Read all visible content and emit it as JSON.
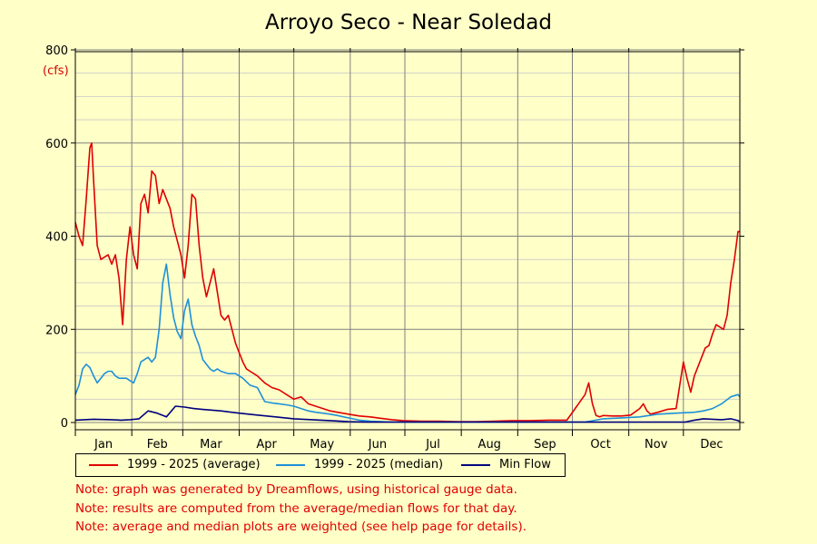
{
  "page": {
    "title": "Arroyo Seco - Near Soledad"
  },
  "colors": {
    "background": "#ffffc8",
    "average": "#e00000",
    "median": "#1e90d8",
    "min": "#000080",
    "unit": "#d40000"
  },
  "chart_data": {
    "type": "line",
    "title": "Arroyo Seco - Near Soledad",
    "ylabel_unit": "(cfs)",
    "ylim": [
      0,
      800
    ],
    "xlim": [
      0,
      365
    ],
    "y_ticks": [
      0,
      200,
      400,
      600,
      800
    ],
    "y_tick_labels": [
      "0",
      "200",
      "400",
      "600",
      "800"
    ],
    "month_labels": [
      "Jan",
      "Feb",
      "Mar",
      "Apr",
      "May",
      "Jun",
      "Jul",
      "Aug",
      "Sep",
      "Oct",
      "Nov",
      "Dec"
    ],
    "grid": true,
    "series": [
      {
        "name": "1999 - 2025 (average)",
        "color": "#e00000",
        "x": [
          0,
          2,
          4,
          6,
          8,
          9,
          10,
          12,
          14,
          16,
          18,
          20,
          22,
          24,
          26,
          28,
          30,
          32,
          34,
          36,
          38,
          40,
          42,
          44,
          46,
          48,
          50,
          52,
          54,
          56,
          58,
          60,
          62,
          64,
          66,
          68,
          70,
          72,
          74,
          76,
          78,
          80,
          82,
          84,
          86,
          88,
          90,
          92,
          94,
          96,
          100,
          104,
          108,
          112,
          116,
          120,
          124,
          128,
          132,
          136,
          140,
          144,
          150,
          156,
          162,
          168,
          174,
          180,
          190,
          200,
          210,
          220,
          230,
          240,
          250,
          260,
          270,
          280,
          282,
          284,
          286,
          288,
          290,
          295,
          300,
          305,
          310,
          312,
          314,
          316,
          318,
          320,
          325,
          330,
          332,
          334,
          336,
          338,
          340,
          342,
          344,
          346,
          348,
          350,
          352,
          354,
          356,
          358,
          360,
          362,
          364,
          365
        ],
        "y": [
          430,
          400,
          380,
          480,
          590,
          600,
          520,
          380,
          350,
          355,
          360,
          340,
          360,
          310,
          210,
          350,
          420,
          360,
          330,
          470,
          490,
          450,
          540,
          530,
          470,
          500,
          480,
          460,
          420,
          390,
          360,
          310,
          380,
          490,
          480,
          380,
          310,
          270,
          300,
          330,
          280,
          230,
          220,
          230,
          200,
          170,
          150,
          130,
          115,
          110,
          100,
          85,
          75,
          70,
          60,
          50,
          55,
          40,
          35,
          30,
          25,
          22,
          18,
          14,
          12,
          9,
          6,
          4,
          3,
          3,
          2,
          2,
          3,
          4,
          4,
          5,
          5,
          60,
          85,
          40,
          15,
          12,
          15,
          14,
          14,
          16,
          30,
          40,
          25,
          18,
          20,
          22,
          28,
          30,
          80,
          130,
          95,
          65,
          100,
          120,
          140,
          160,
          165,
          190,
          210,
          205,
          200,
          230,
          300,
          350,
          410,
          410
        ]
      },
      {
        "name": "1999 - 2025 (median)",
        "color": "#1e90d8",
        "x": [
          0,
          2,
          4,
          6,
          8,
          10,
          12,
          14,
          16,
          18,
          20,
          22,
          24,
          26,
          28,
          30,
          32,
          34,
          36,
          38,
          40,
          42,
          44,
          46,
          48,
          50,
          52,
          54,
          56,
          58,
          60,
          62,
          64,
          66,
          68,
          70,
          72,
          74,
          76,
          78,
          80,
          84,
          88,
          92,
          96,
          100,
          104,
          108,
          112,
          116,
          120,
          124,
          128,
          132,
          136,
          140,
          144,
          150,
          156,
          162,
          168,
          174,
          180,
          190,
          200,
          210,
          220,
          230,
          240,
          250,
          260,
          270,
          280,
          290,
          300,
          310,
          320,
          330,
          340,
          345,
          350,
          355,
          360,
          364,
          365
        ],
        "y": [
          60,
          80,
          115,
          125,
          118,
          100,
          85,
          95,
          105,
          110,
          110,
          100,
          95,
          95,
          95,
          90,
          85,
          105,
          130,
          135,
          140,
          130,
          140,
          200,
          300,
          340,
          275,
          225,
          195,
          180,
          240,
          265,
          210,
          185,
          165,
          135,
          125,
          115,
          110,
          115,
          110,
          105,
          105,
          95,
          80,
          75,
          45,
          42,
          40,
          38,
          35,
          30,
          25,
          22,
          20,
          18,
          15,
          10,
          5,
          3,
          2,
          1,
          1,
          1,
          1,
          1,
          1,
          1,
          1,
          1,
          1,
          1,
          1,
          8,
          10,
          12,
          18,
          20,
          22,
          25,
          30,
          40,
          55,
          60,
          55
        ]
      },
      {
        "name": "Min Flow",
        "color": "#000080",
        "x": [
          0,
          5,
          10,
          20,
          25,
          30,
          35,
          40,
          45,
          50,
          55,
          60,
          65,
          70,
          80,
          90,
          100,
          110,
          120,
          130,
          140,
          150,
          160,
          170,
          180,
          200,
          220,
          240,
          260,
          280,
          300,
          320,
          330,
          335,
          340,
          345,
          350,
          355,
          360,
          364,
          365
        ],
        "y": [
          5,
          6,
          7,
          6,
          5,
          6,
          8,
          25,
          20,
          12,
          35,
          33,
          30,
          28,
          25,
          20,
          16,
          12,
          8,
          6,
          4,
          2,
          1,
          1,
          1,
          1,
          1,
          1,
          1,
          1,
          1,
          1,
          1,
          1,
          5,
          8,
          7,
          6,
          8,
          4,
          2
        ]
      }
    ]
  },
  "legend": {
    "items": [
      "1999 - 2025 (average)",
      "1999 - 2025 (median)",
      "Min Flow"
    ]
  },
  "notes": [
    "Note: graph was generated by Dreamflows, using historical gauge data.",
    "Note: results are computed from the average/median flows for that day.",
    "Note: average and median plots are weighted (see help page for details)."
  ]
}
